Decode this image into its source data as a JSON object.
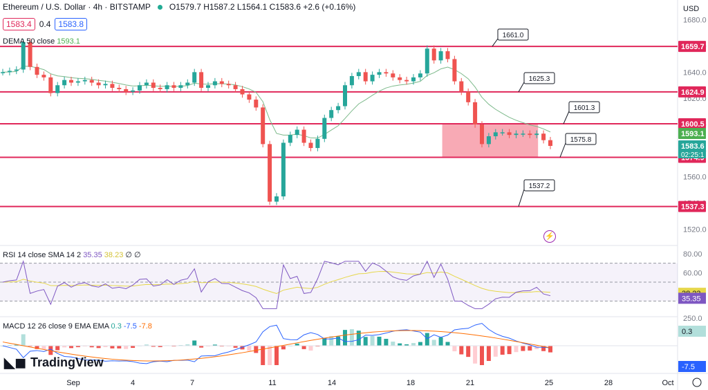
{
  "header": {
    "symbol": "Ethereum / U.S. Dollar · 4h · BITSTAMP",
    "ohlc": "O1579.7 H1587.2 L1564.1 C1583.6 +2.6 (+0.16%)",
    "bid": "1583.4",
    "spread": "0.4",
    "ask": "1583.8",
    "dema_label": "DEMA 50 close",
    "dema_value": "1593.1"
  },
  "currency": "USD",
  "price_axis": {
    "ticks": [
      1680,
      1660,
      1640,
      1620,
      1600,
      1580,
      1560,
      1540,
      1520
    ],
    "min": 1508,
    "max": 1692
  },
  "levels": [
    {
      "value": 1659.7,
      "label": "1659.7",
      "color": "#e0275a"
    },
    {
      "value": 1624.9,
      "label": "1624.9",
      "color": "#e0275a"
    },
    {
      "value": 1600.5,
      "label": "1600.5",
      "color": "#e0275a"
    },
    {
      "value": 1574.9,
      "label": "1574.9",
      "color": "#e0275a"
    },
    {
      "value": 1537.3,
      "label": "1537.3",
      "color": "#e0275a"
    }
  ],
  "callouts": [
    "1661.0",
    "1625.3",
    "1601.3",
    "1575.8",
    "1537.2"
  ],
  "price_labels": {
    "dema": "1593.1",
    "last": "1583.6",
    "countdown": "02:25:1"
  },
  "zone": {
    "from_date": "Sep 20",
    "to_date": "Sep 24",
    "low": 1574.9,
    "high": 1600.5,
    "color": "#f7a1ad"
  },
  "rsi": {
    "label": "RSI 14 close SMA 14 2",
    "rsi_value": "35.35",
    "sma_value": "38.23",
    "extra": "∅ ∅",
    "ticks": [
      "80.00",
      "60.00",
      "40.00",
      "20.00"
    ],
    "badge_rsi": "35.35",
    "badge_sma": "38.23"
  },
  "macd": {
    "label": "MACD 12 26 close 9 EMA EMA",
    "hist_value": "0.3",
    "macd_value": "-7.5",
    "signal_value": "-7.8",
    "ticks": [
      "250.0",
      "0.3",
      "-7.5"
    ]
  },
  "time_axis": [
    "Sep",
    "4",
    "7",
    "11",
    "14",
    "18",
    "21",
    "25",
    "28",
    "Oct"
  ],
  "brand": "TradingView",
  "colors": {
    "up": "#26a69a",
    "down": "#ef5350",
    "dema": "#7cb98a",
    "rsi": "#7e57c2",
    "sma": "#e6d74a",
    "macd": "#2962ff",
    "signal": "#ff6d00"
  },
  "chart_data": {
    "type": "candlestick",
    "symbol": "ETH/USD",
    "interval": "4h",
    "approx_closes": [
      1640,
      1641,
      1642,
      1663,
      1644,
      1638,
      1636,
      1624,
      1630,
      1634,
      1632,
      1633,
      1634,
      1632,
      1630,
      1631,
      1628,
      1627,
      1625,
      1626,
      1630,
      1632,
      1628,
      1627,
      1630,
      1628,
      1630,
      1632,
      1640,
      1628,
      1630,
      1633,
      1631,
      1630,
      1627,
      1623,
      1619,
      1613,
      1585,
      1541,
      1545,
      1586,
      1592,
      1596,
      1586,
      1582,
      1589,
      1605,
      1611,
      1614,
      1630,
      1637,
      1640,
      1633,
      1638,
      1640,
      1639,
      1636,
      1634,
      1633,
      1636,
      1639,
      1658,
      1649,
      1656,
      1650,
      1633,
      1625,
      1617,
      1600,
      1585,
      1591,
      1594,
      1594,
      1592,
      1593,
      1593,
      1592,
      1593,
      1588,
      1583.6
    ],
    "ylim": [
      1508,
      1692
    ]
  }
}
